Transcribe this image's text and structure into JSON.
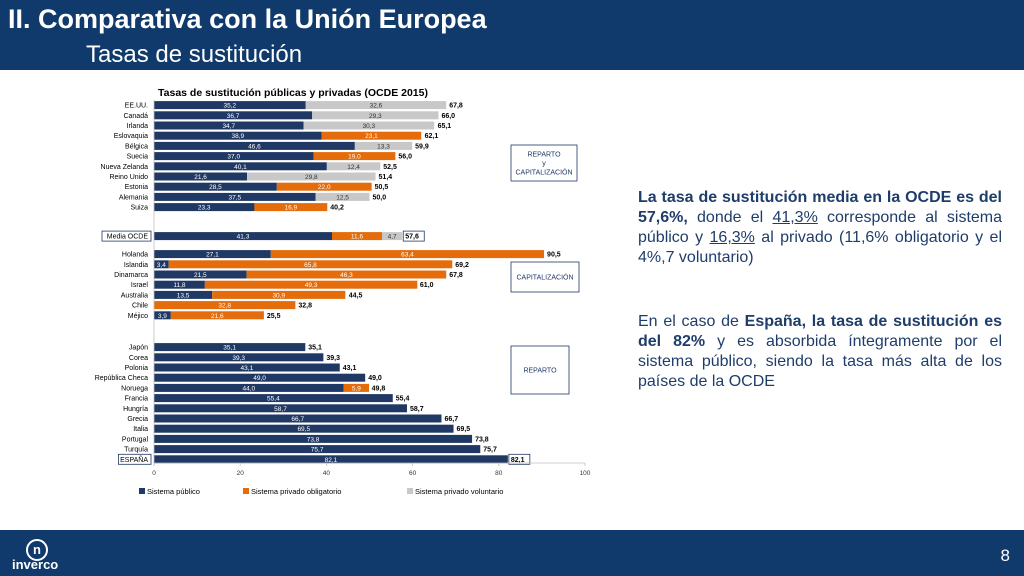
{
  "header": {
    "title": "II. Comparativa con la Unión Europea",
    "subtitle": "Tasas de sustitución"
  },
  "footer": {
    "logo_mark": "n",
    "logo_text": "inverco",
    "page_number": "8"
  },
  "colors": {
    "header_bg": "#0f3a6b",
    "publico": "#1f3864",
    "obligatorio": "#e46c0a",
    "voluntario": "#c8c8c8",
    "text_blue": "#1f3d6b"
  },
  "chart_data": {
    "type": "bar",
    "orientation": "horizontal",
    "stacked": true,
    "title": "Tasas de sustitución públicas y privadas (OCDE 2015)",
    "xlim": [
      0,
      100
    ],
    "xticks": [
      0,
      20,
      40,
      60,
      80,
      100
    ],
    "legend_position": "bottom",
    "series_names": [
      "Sistema público",
      "Sistema privado obligatorio",
      "Sistema privado voluntario"
    ],
    "groups": [
      {
        "label": "REPARTO\ny\nCAPITALIZACIÓN",
        "rows": [
          {
            "country": "EE.UU.",
            "publico": "35,2",
            "obligatorio": null,
            "voluntario": "32,6",
            "total": "67,8"
          },
          {
            "country": "Canadá",
            "publico": "36,7",
            "obligatorio": null,
            "voluntario": "29,3",
            "total": "66,0"
          },
          {
            "country": "Irlanda",
            "publico": "34,7",
            "obligatorio": null,
            "voluntario": "30,3",
            "total": "65,1"
          },
          {
            "country": "Eslovaquia",
            "publico": "38,9",
            "obligatorio": "23,1",
            "voluntario": null,
            "total": "62,1"
          },
          {
            "country": "Bélgica",
            "publico": "46,6",
            "obligatorio": null,
            "voluntario": "13,3",
            "total": "59,9"
          },
          {
            "country": "Suecia",
            "publico": "37,0",
            "obligatorio": "19,0",
            "voluntario": null,
            "total": "56,0"
          },
          {
            "country": "Nueva Zelanda",
            "publico": "40,1",
            "obligatorio": null,
            "voluntario": "12,4",
            "total": "52,5"
          },
          {
            "country": "Reino Unido",
            "publico": "21,6",
            "obligatorio": null,
            "voluntario": "29,8",
            "total": "51,4"
          },
          {
            "country": "Estonia",
            "publico": "28,5",
            "obligatorio": "22,0",
            "voluntario": null,
            "total": "50,5"
          },
          {
            "country": "Alemania",
            "publico": "37,5",
            "obligatorio": null,
            "voluntario": "12,5",
            "total": "50,0"
          },
          {
            "country": "Suiza",
            "publico": "23,3",
            "obligatorio": "16,9",
            "voluntario": null,
            "total": "40,2"
          }
        ]
      },
      {
        "label": "",
        "rows": [
          {
            "country": "Media OCDE",
            "publico": "41,3",
            "obligatorio": "11,6",
            "voluntario": "4,7",
            "total": "57,6",
            "boxed": true
          }
        ]
      },
      {
        "label": "CAPITALIZACIÓN",
        "rows": [
          {
            "country": "Holanda",
            "publico": "27,1",
            "obligatorio": "63,4",
            "voluntario": null,
            "total": "90,5"
          },
          {
            "country": "Islandia",
            "publico": "3,4",
            "obligatorio": "65,8",
            "voluntario": null,
            "total": "69,2"
          },
          {
            "country": "Dinamarca",
            "publico": "21,5",
            "obligatorio": "46,3",
            "voluntario": null,
            "total": "67,8"
          },
          {
            "country": "Israel",
            "publico": "11,8",
            "obligatorio": "49,3",
            "voluntario": null,
            "total": "61,0"
          },
          {
            "country": "Australia",
            "publico": "13,5",
            "obligatorio": "30,9",
            "voluntario": null,
            "total": "44,5"
          },
          {
            "country": "Chile",
            "publico": null,
            "obligatorio": "32,8",
            "voluntario": null,
            "total": "32,8"
          },
          {
            "country": "Méjico",
            "publico": "3,9",
            "obligatorio": "21,6",
            "voluntario": null,
            "total": "25,5"
          }
        ]
      },
      {
        "label": "REPARTO",
        "rows": [
          {
            "country": "Japón",
            "publico": "35,1",
            "obligatorio": null,
            "voluntario": null,
            "total": "35,1"
          },
          {
            "country": "Corea",
            "publico": "39,3",
            "obligatorio": null,
            "voluntario": null,
            "total": "39,3"
          },
          {
            "country": "Polonia",
            "publico": "43,1",
            "obligatorio": null,
            "voluntario": null,
            "total": "43,1"
          },
          {
            "country": "República Checa",
            "publico": "49,0",
            "obligatorio": null,
            "voluntario": null,
            "total": "49,0"
          },
          {
            "country": "Noruega",
            "publico": "44,0",
            "obligatorio": "5,9",
            "voluntario": null,
            "total": "49,8"
          },
          {
            "country": "Francia",
            "publico": "55,4",
            "obligatorio": null,
            "voluntario": null,
            "total": "55,4"
          },
          {
            "country": "Hungría",
            "publico": "58,7",
            "obligatorio": null,
            "voluntario": null,
            "total": "58,7"
          },
          {
            "country": "Grecia",
            "publico": "66,7",
            "obligatorio": null,
            "voluntario": null,
            "total": "66,7"
          },
          {
            "country": "Italia",
            "publico": "69,5",
            "obligatorio": null,
            "voluntario": null,
            "total": "69,5"
          },
          {
            "country": "Portugal",
            "publico": "73,8",
            "obligatorio": null,
            "voluntario": null,
            "total": "73,8"
          },
          {
            "country": "Turquía",
            "publico": "75,7",
            "obligatorio": null,
            "voluntario": null,
            "total": "75,7"
          },
          {
            "country": "ESPAÑA",
            "publico": "82,1",
            "obligatorio": null,
            "voluntario": null,
            "total": "82,1",
            "boxed": true
          }
        ]
      }
    ]
  },
  "panel": {
    "p1": {
      "s1": "La tasa de sustitución media en la OCDE es del 57,6%,",
      "s2": " donde el ",
      "s3": "41,3%",
      "s4": " corresponde al sistema público y ",
      "s5": "16,3%",
      "s6": " al privado (11,6% obligatorio y el 4%,7 voluntario)"
    },
    "p2": {
      "s1": "En el caso de ",
      "s2": "España, la tasa de sustitución es del 82%",
      "s3": " y es absorbida íntegramente por el sistema público, siendo la tasa más alta de los países de la OCDE"
    }
  }
}
